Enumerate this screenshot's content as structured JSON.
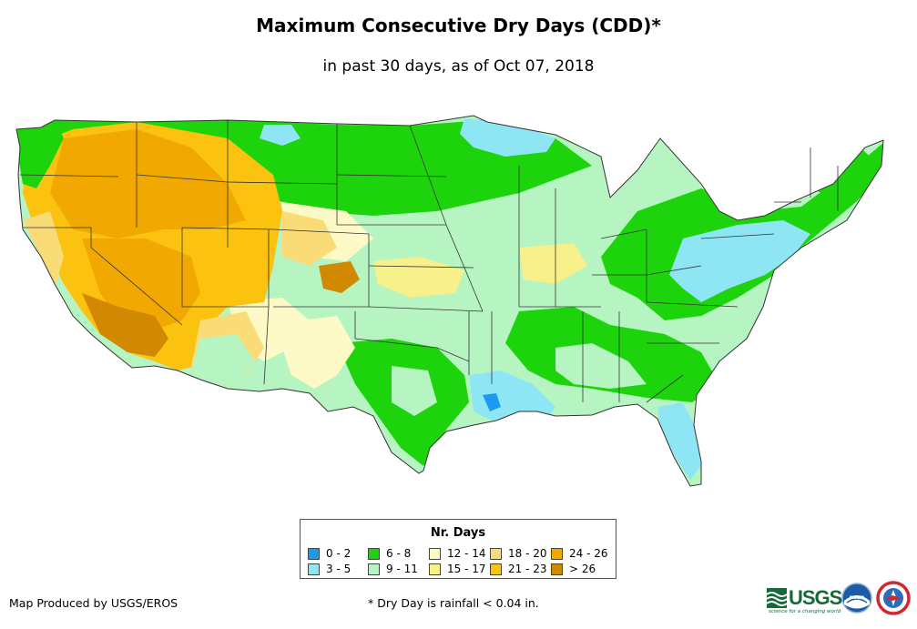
{
  "title": "Maximum Consecutive Dry Days (CDD)*",
  "subtitle": "in past 30 days, as of Oct 07, 2018",
  "legend": {
    "title": "Nr. Days",
    "items": [
      {
        "label": "0 - 2",
        "color": "#1a9bef"
      },
      {
        "label": "3 - 5",
        "color": "#8ee6f5"
      },
      {
        "label": "6 - 8",
        "color": "#1dd40c"
      },
      {
        "label": "9 - 11",
        "color": "#b6f5c2"
      },
      {
        "label": "12 - 14",
        "color": "#fdfac8"
      },
      {
        "label": "15 - 17",
        "color": "#f8f08a"
      },
      {
        "label": "18 - 20",
        "color": "#f9dc78"
      },
      {
        "label": "21 - 23",
        "color": "#fbc20f"
      },
      {
        "label": "24 - 26",
        "color": "#f1a800"
      },
      {
        "label": "> 26",
        "color": "#d08900"
      }
    ]
  },
  "credit": "Map Produced by USGS/EROS",
  "footnote": "* Dry Day is rainfall < 0.04 in.",
  "logos": {
    "usgs": "USGS",
    "usgs_tagline": "science for a changing world",
    "noaa": "noaa"
  },
  "colors": {
    "state_border": "#333333",
    "usgs_green": "#166a3a",
    "noaa_blue": "#1e5aa8"
  }
}
